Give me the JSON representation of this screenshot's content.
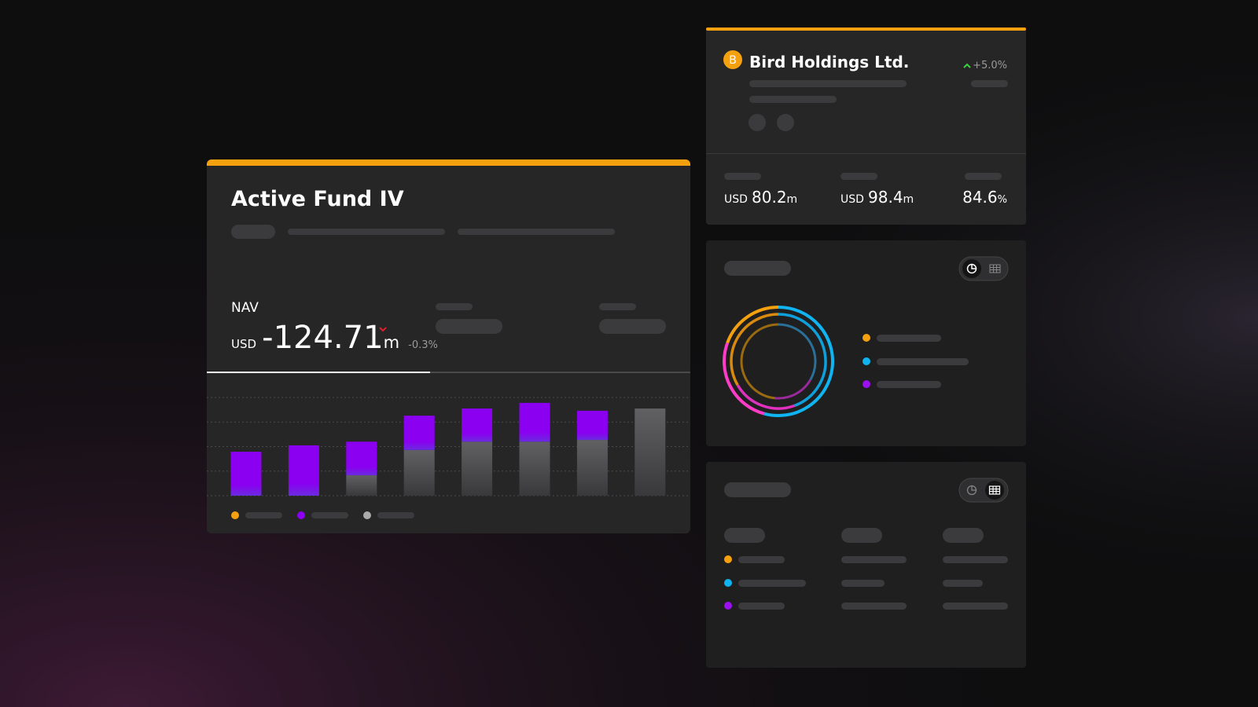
{
  "fund": {
    "title": "Active Fund IV",
    "nav_label": "NAV",
    "currency": "USD",
    "nav_value": "-124.71",
    "nav_unit": "m",
    "nav_change": "-0.3%"
  },
  "holding": {
    "badge": "B",
    "name": "Bird Holdings Ltd.",
    "change": "+5.0%",
    "stats": [
      {
        "currency": "USD",
        "value": "80.2",
        "unit": "m"
      },
      {
        "currency": "USD",
        "value": "98.4",
        "unit": "m"
      },
      {
        "value": "84.6",
        "unit": "%"
      }
    ]
  },
  "chart_data": {
    "type": "bar",
    "stacked": true,
    "grid": true,
    "categories": [
      null,
      null,
      null,
      null,
      null,
      null,
      null,
      null
    ],
    "series": [
      {
        "color": "#5a5a5c",
        "values": [
          0,
          0,
          0.83,
          1.86,
          2.2,
          2.2,
          2.27,
          3.55
        ]
      },
      {
        "color": "#8b00f0",
        "values": [
          1.79,
          2.05,
          1.37,
          1.4,
          1.35,
          1.58,
          1.19,
          0
        ]
      }
    ],
    "ylim": [
      0,
      4
    ],
    "yticks": [
      0,
      1,
      2,
      3,
      4
    ]
  }
}
